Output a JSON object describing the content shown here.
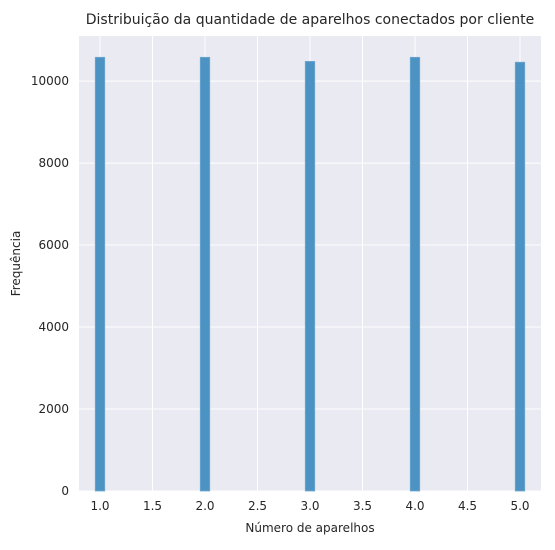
{
  "chart_data": {
    "type": "bar",
    "title": "Distribuição da quantidade de aparelhos conectados por cliente",
    "xlabel": "Número de aparelhos",
    "ylabel": "Frequência",
    "x": [
      1,
      2,
      3,
      4,
      5
    ],
    "values": [
      10580,
      10580,
      10480,
      10580,
      10460
    ],
    "xlim": [
      0.8,
      5.2
    ],
    "ylim": [
      0,
      11100
    ],
    "x_ticks": [
      1.0,
      1.5,
      2.0,
      2.5,
      3.0,
      3.5,
      4.0,
      4.5,
      5.0
    ],
    "x_tick_labels": [
      "1.0",
      "1.5",
      "2.0",
      "2.5",
      "3.0",
      "3.5",
      "4.0",
      "4.5",
      "5.0"
    ],
    "y_ticks": [
      0,
      2000,
      4000,
      6000,
      8000,
      10000
    ],
    "y_tick_labels": [
      "0",
      "2000",
      "4000",
      "6000",
      "8000",
      "10000"
    ],
    "grid": true,
    "background_color": "#eaeaf2",
    "bar_color": "#4c93c3",
    "bar_edge_color": "#6ea8d0"
  }
}
